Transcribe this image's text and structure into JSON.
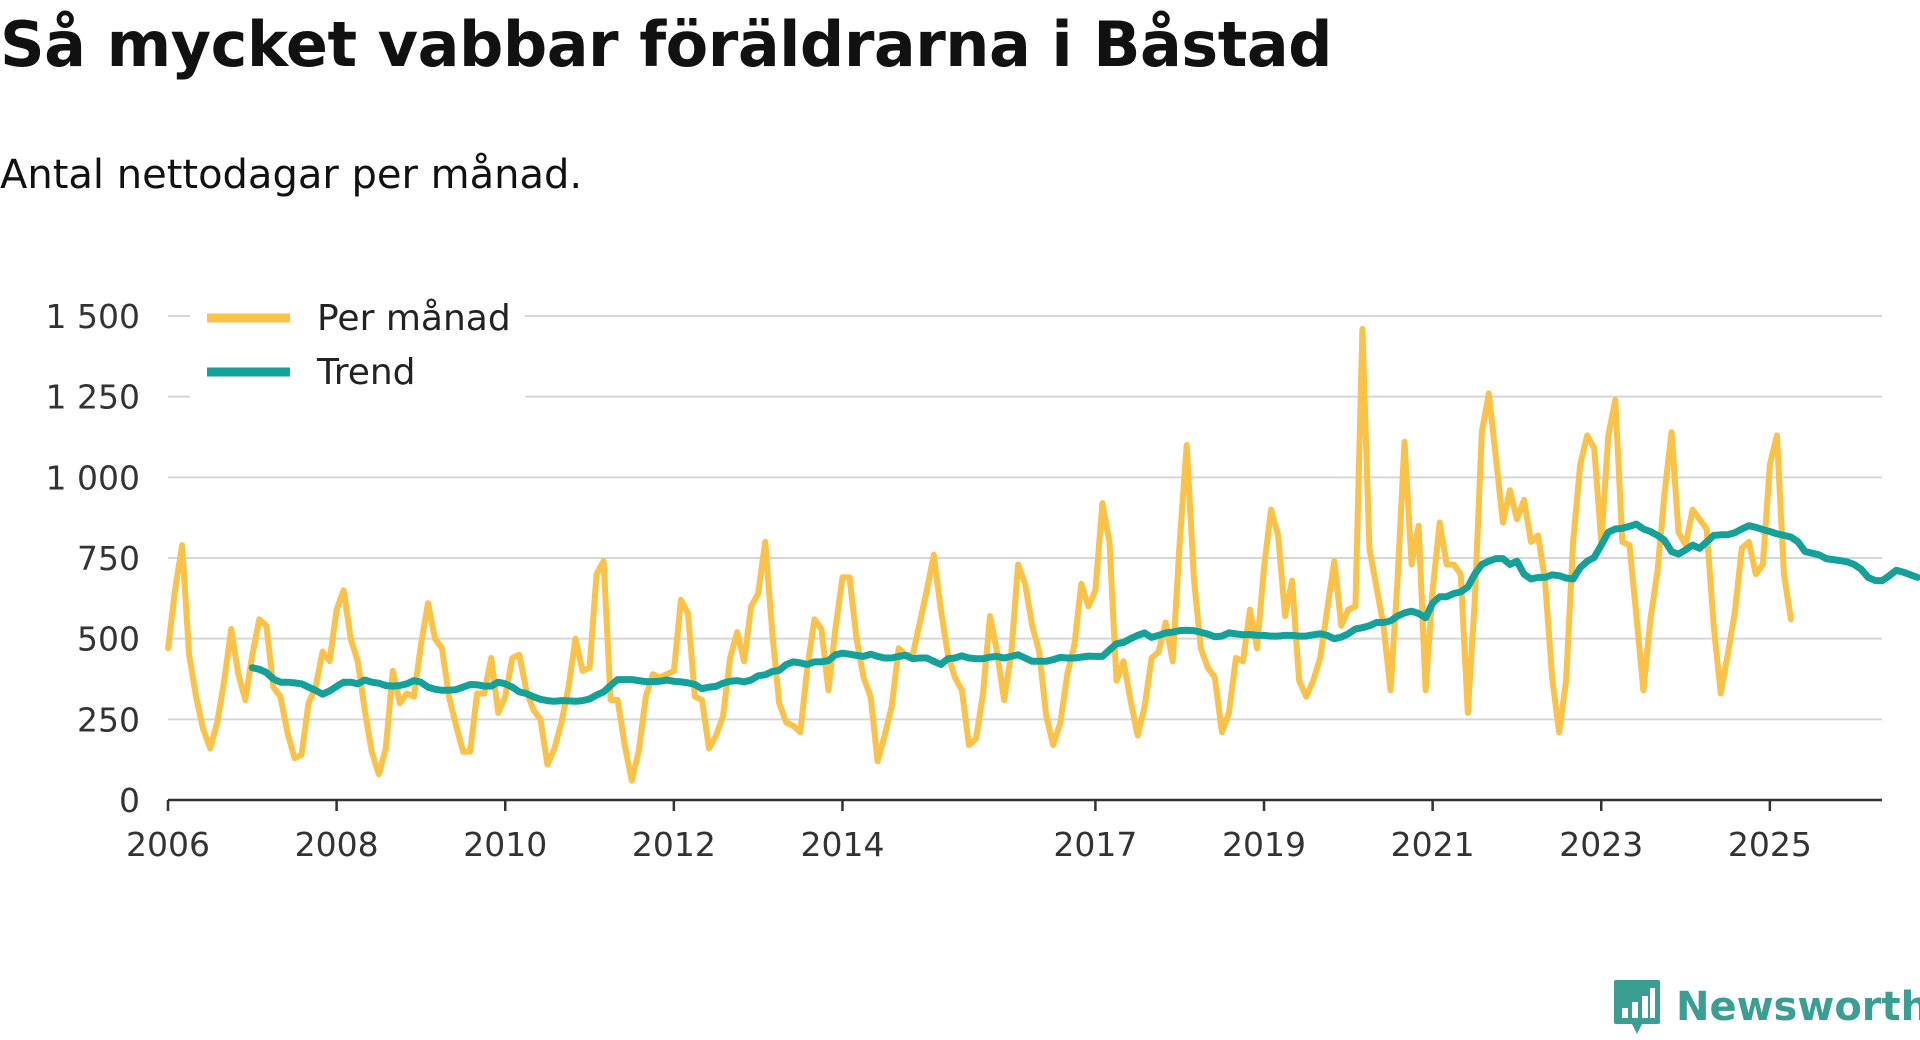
{
  "header": {
    "title": "Så mycket vabbar föräldrarna i Båstad",
    "subtitle": "Antal nettodagar per månad."
  },
  "brand": {
    "name": "Newsworthy",
    "color": "#3a9e92"
  },
  "chart_data": {
    "type": "line",
    "title": "Så mycket vabbar föräldrarna i Båstad",
    "subtitle": "Antal nettodagar per månad.",
    "xlabel": "",
    "ylabel": "",
    "x_range": [
      2006,
      2026.33
    ],
    "ylim": [
      0,
      1500
    ],
    "y_ticks": [
      0,
      250,
      500,
      750,
      1000,
      1250,
      1500
    ],
    "y_tick_labels": [
      "0",
      "250",
      "500",
      "750",
      "1 000",
      "1 250",
      "1 500"
    ],
    "x_ticks": [
      2006,
      2008,
      2010,
      2012,
      2014,
      2017,
      2019,
      2021,
      2023,
      2025
    ],
    "x_tick_positions": [
      2006,
      2008,
      2010,
      2012,
      2014,
      2017,
      2019,
      2021,
      2023,
      2025
    ],
    "x_tick_labels": [
      "2006",
      "2008",
      "2010",
      "2012",
      "2014",
      "2017",
      "2019",
      "2021",
      "2023",
      "2025"
    ],
    "grid": true,
    "legend_position": "top-left",
    "series": [
      {
        "name": "Per månad",
        "color": "#fcc147",
        "start": [
          2006,
          1
        ],
        "values": [
          470,
          650,
          790,
          450,
          320,
          220,
          160,
          240,
          370,
          530,
          390,
          310,
          450,
          560,
          540,
          350,
          320,
          210,
          130,
          140,
          300,
          350,
          460,
          430,
          590,
          650,
          500,
          430,
          280,
          150,
          80,
          160,
          400,
          300,
          330,
          320,
          480,
          610,
          500,
          470,
          320,
          230,
          150,
          150,
          330,
          330,
          440,
          270,
          320,
          440,
          450,
          340,
          280,
          250,
          110,
          160,
          240,
          350,
          500,
          400,
          410,
          700,
          740,
          310,
          310,
          170,
          60,
          150,
          320,
          390,
          380,
          390,
          400,
          620,
          580,
          320,
          310,
          160,
          200,
          260,
          440,
          520,
          430,
          600,
          640,
          800,
          520,
          300,
          240,
          230,
          210,
          410,
          560,
          530,
          340,
          530,
          690,
          690,
          500,
          380,
          320,
          120,
          200,
          290,
          470,
          450,
          450,
          550,
          650,
          760,
          590,
          450,
          380,
          340,
          170,
          190,
          330,
          570,
          460,
          310,
          450,
          730,
          670,
          540,
          460,
          260,
          170,
          240,
          390,
          480,
          670,
          600,
          650,
          920,
          800,
          370,
          430,
          310,
          200,
          290,
          440,
          460,
          550,
          430,
          800,
          1100,
          690,
          470,
          410,
          380,
          210,
          270,
          440,
          430,
          590,
          470,
          720,
          900,
          820,
          570,
          680,
          370,
          320,
          370,
          440,
          590,
          740,
          540,
          590,
          600,
          1460,
          780,
          660,
          540,
          340,
          680,
          1110,
          730,
          850,
          340,
          650,
          860,
          730,
          730,
          700,
          270,
          620,
          1140,
          1260,
          1060,
          860,
          960,
          870,
          930,
          800,
          820,
          680,
          380,
          210,
          370,
          800,
          1040,
          1130,
          1090,
          800,
          1130,
          1240,
          800,
          790,
          570,
          340,
          560,
          710,
          950,
          1140,
          830,
          790,
          900,
          870,
          840,
          540,
          330,
          450,
          580,
          780,
          800,
          700,
          730,
          1040,
          1130,
          700,
          560
        ]
      },
      {
        "name": "Trend",
        "color": "#13a19a",
        "start": [
          2007,
          1
        ],
        "values": [
          410,
          405,
          395,
          375,
          365,
          365,
          363,
          360,
          350,
          340,
          328,
          338,
          352,
          365,
          365,
          360,
          372,
          365,
          362,
          355,
          353,
          355,
          360,
          370,
          365,
          350,
          343,
          340,
          340,
          342,
          350,
          358,
          357,
          353,
          353,
          365,
          360,
          350,
          335,
          330,
          320,
          312,
          308,
          306,
          308,
          307,
          306,
          308,
          313,
          325,
          335,
          355,
          373,
          373,
          373,
          370,
          367,
          367,
          368,
          372,
          368,
          366,
          363,
          358,
          345,
          350,
          352,
          362,
          368,
          370,
          366,
          372,
          385,
          388,
          398,
          402,
          420,
          428,
          425,
          420,
          428,
          428,
          432,
          450,
          455,
          452,
          448,
          445,
          452,
          445,
          440,
          440,
          445,
          448,
          438,
          440,
          440,
          430,
          420,
          438,
          440,
          447,
          440,
          438,
          438,
          443,
          445,
          440,
          445,
          450,
          440,
          430,
          430,
          430,
          435,
          442,
          440,
          440,
          443,
          446,
          445,
          445,
          465,
          484,
          488,
          500,
          510,
          518,
          504,
          510,
          518,
          520,
          525,
          526,
          525,
          520,
          514,
          506,
          508,
          518,
          515,
          512,
          513,
          510,
          510,
          508,
          508,
          510,
          510,
          508,
          508,
          512,
          515,
          510,
          500,
          505,
          515,
          530,
          534,
          540,
          550,
          550,
          555,
          570,
          580,
          585,
          578,
          565,
          610,
          630,
          630,
          640,
          645,
          660,
          700,
          730,
          740,
          748,
          748,
          730,
          740,
          700,
          685,
          690,
          690,
          698,
          695,
          688,
          685,
          720,
          740,
          752,
          790,
          830,
          840,
          842,
          848,
          855,
          840,
          832,
          820,
          805,
          770,
          762,
          775,
          790,
          780,
          800,
          820,
          822,
          822,
          828,
          840,
          850,
          845,
          838,
          832,
          825,
          820,
          815,
          800,
          770,
          765,
          760,
          748,
          745,
          742,
          738,
          730,
          715,
          690,
          680,
          680,
          695,
          712,
          706,
          698,
          690
        ]
      }
    ]
  }
}
